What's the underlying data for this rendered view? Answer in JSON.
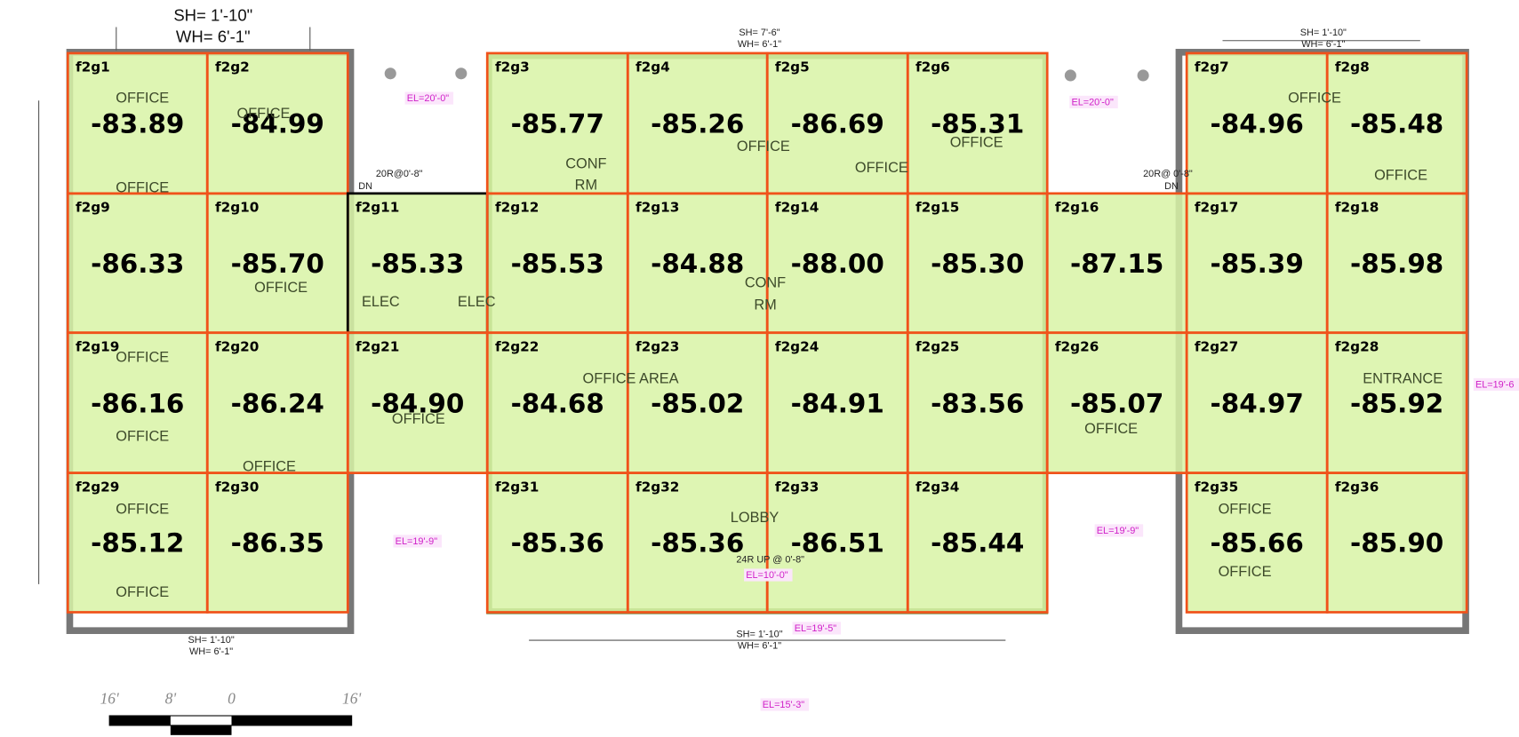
{
  "grid": {
    "rows": [
      [
        {
          "id": "f2g1",
          "value": "-83.89"
        },
        {
          "id": "f2g2",
          "value": "-84.99"
        },
        null,
        {
          "id": "f2g3",
          "value": "-85.77"
        },
        {
          "id": "f2g4",
          "value": "-85.26"
        },
        {
          "id": "f2g5",
          "value": "-86.69"
        },
        {
          "id": "f2g6",
          "value": "-85.31"
        },
        null,
        {
          "id": "f2g7",
          "value": "-84.96"
        },
        {
          "id": "f2g8",
          "value": "-85.48"
        }
      ],
      [
        {
          "id": "f2g9",
          "value": "-86.33"
        },
        {
          "id": "f2g10",
          "value": "-85.70"
        },
        {
          "id": "f2g11",
          "value": "-85.33"
        },
        {
          "id": "f2g12",
          "value": "-85.53"
        },
        {
          "id": "f2g13",
          "value": "-84.88"
        },
        {
          "id": "f2g14",
          "value": "-88.00"
        },
        {
          "id": "f2g15",
          "value": "-85.30"
        },
        {
          "id": "f2g16",
          "value": "-87.15"
        },
        {
          "id": "f2g17",
          "value": "-85.39"
        },
        {
          "id": "f2g18",
          "value": "-85.98"
        }
      ],
      [
        {
          "id": "f2g19",
          "value": "-86.16"
        },
        {
          "id": "f2g20",
          "value": "-86.24"
        },
        {
          "id": "f2g21",
          "value": "-84.90"
        },
        {
          "id": "f2g22",
          "value": "-84.68"
        },
        {
          "id": "f2g23",
          "value": "-85.02"
        },
        {
          "id": "f2g24",
          "value": "-84.91"
        },
        {
          "id": "f2g25",
          "value": "-83.56"
        },
        {
          "id": "f2g26",
          "value": "-85.07"
        },
        {
          "id": "f2g27",
          "value": "-84.97"
        },
        {
          "id": "f2g28",
          "value": "-85.92"
        }
      ],
      [
        {
          "id": "f2g29",
          "value": "-85.12"
        },
        {
          "id": "f2g30",
          "value": "-86.35"
        },
        null,
        {
          "id": "f2g31",
          "value": "-85.36"
        },
        {
          "id": "f2g32",
          "value": "-85.36"
        },
        {
          "id": "f2g33",
          "value": "-86.51"
        },
        {
          "id": "f2g34",
          "value": "-85.44"
        },
        null,
        {
          "id": "f2g35",
          "value": "-85.66"
        },
        {
          "id": "f2g36",
          "value": "-85.90"
        }
      ]
    ]
  },
  "annotations": {
    "top_sh": "SH= 1'-10\"",
    "top_wh": "WH= 6'-1\"",
    "notes": [
      "SH= 7'-6\"",
      "WH= 6'-1\"",
      "SH= 1'-10\"",
      "WH= 6'-1\"",
      "SH= 1'-10\"",
      "WH= 6'-1\"",
      "SH= 1'-10\"",
      "WH= 6'-1\"",
      "20R@0'-8\"",
      "DN",
      "20R@ 0'-8\"",
      "DN",
      "24R UP @ 0'-8\""
    ],
    "elevations": [
      "EL=20'-0\"",
      "EL=20'-0\"",
      "EL=19'-9\"",
      "EL=19'-9\"",
      "EL=19'-5\"",
      "EL=10'-0\"",
      "EL=15'-3\"",
      "EL=19'-6"
    ],
    "rooms": [
      "OFFICE",
      "OFFICE",
      "OFFICE",
      "CONF",
      "RM",
      "OFFICE",
      "OFFICE",
      "OFFICE",
      "OFFICE",
      "OFFICE",
      "OFFICE",
      "CONF",
      "RM",
      "ELEC",
      "ELEC",
      "OFFICE",
      "OFFICE AREA",
      "OFFICE",
      "OFFICE",
      "ENTRANCE",
      "OFFICE",
      "OFFICE",
      "OFFICE",
      "OFFICE",
      "LOBBY",
      "OFFICE",
      "OFFICE"
    ],
    "scale": [
      "16'",
      "8'",
      "0",
      "16'"
    ]
  }
}
